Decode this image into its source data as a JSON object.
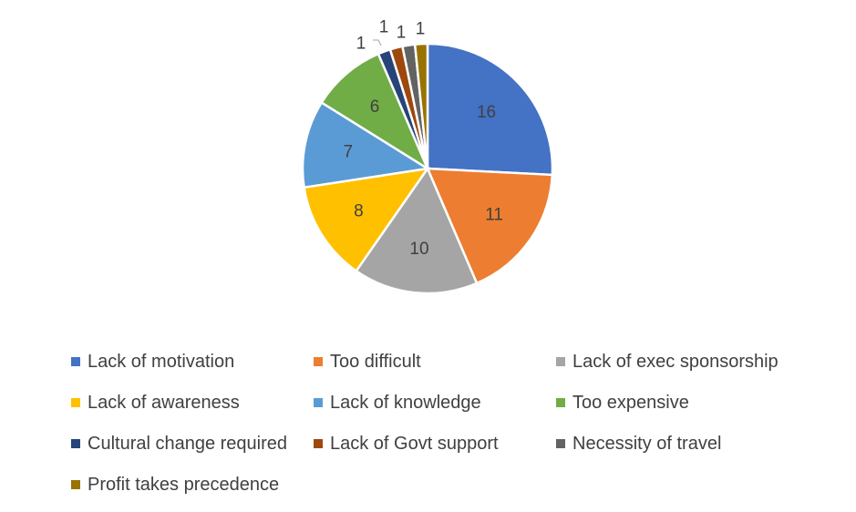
{
  "chart_data": {
    "type": "pie",
    "title": "",
    "slices": [
      {
        "label": "Lack of motivation",
        "value": 16,
        "color": "#4472C4"
      },
      {
        "label": "Too difficult",
        "value": 11,
        "color": "#ED7D31"
      },
      {
        "label": "Lack of exec sponsorship",
        "value": 10,
        "color": "#A5A5A5"
      },
      {
        "label": "Lack of awareness",
        "value": 8,
        "color": "#FFC000"
      },
      {
        "label": "Lack of knowledge",
        "value": 7,
        "color": "#5B9BD5"
      },
      {
        "label": "Too expensive",
        "value": 6,
        "color": "#70AD47"
      },
      {
        "label": "Cultural change required",
        "value": 1,
        "color": "#264478"
      },
      {
        "label": "Lack of Govt support",
        "value": 1,
        "color": "#9E480E"
      },
      {
        "label": "Necessity of travel",
        "value": 1,
        "color": "#636363"
      },
      {
        "label": "Profit takes precedence",
        "value": 1,
        "color": "#997300"
      }
    ],
    "legend_position": "bottom"
  }
}
